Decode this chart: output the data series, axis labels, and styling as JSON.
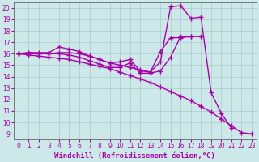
{
  "background_color": "#cce8e8",
  "grid_color": "#aacccc",
  "line_color": "#aa00aa",
  "marker": "+",
  "marker_size": 4,
  "line_width": 1.0,
  "xlabel": "Windchill (Refroidissement éolien,°C)",
  "xlabel_fontsize": 6.5,
  "tick_fontsize": 5.5,
  "xlim": [
    -0.5,
    23.5
  ],
  "ylim": [
    8.5,
    20.5
  ],
  "yticks": [
    9,
    10,
    11,
    12,
    13,
    14,
    15,
    16,
    17,
    18,
    19,
    20
  ],
  "xticks": [
    0,
    1,
    2,
    3,
    4,
    5,
    6,
    7,
    8,
    9,
    10,
    11,
    12,
    13,
    14,
    15,
    16,
    17,
    18,
    19,
    20,
    21,
    22,
    23
  ],
  "series": [
    {
      "x": [
        0,
        1,
        2,
        3,
        4,
        5,
        6,
        7,
        8,
        9,
        10,
        11,
        12,
        13,
        14,
        15,
        16,
        17,
        18,
        19,
        20,
        21
      ],
      "y": [
        16.0,
        16.1,
        16.1,
        16.1,
        16.6,
        16.4,
        16.2,
        15.8,
        15.5,
        15.2,
        15.3,
        15.5,
        14.5,
        14.4,
        15.3,
        20.1,
        20.2,
        19.1,
        19.2,
        12.6,
        10.8,
        9.5
      ]
    },
    {
      "x": [
        0,
        1,
        2,
        3,
        4,
        5,
        6,
        7,
        8,
        9,
        10,
        11,
        12,
        13,
        14,
        15,
        16,
        17,
        18
      ],
      "y": [
        16.0,
        16.0,
        16.0,
        16.0,
        16.1,
        16.1,
        16.0,
        15.8,
        15.5,
        15.2,
        15.0,
        14.8,
        14.6,
        14.4,
        16.2,
        17.4,
        17.4,
        17.5,
        17.5
      ]
    },
    {
      "x": [
        0,
        1,
        2,
        3,
        4,
        5,
        6,
        7,
        8,
        9,
        10,
        11,
        12,
        13,
        14,
        15,
        16,
        17
      ],
      "y": [
        16.0,
        16.1,
        16.0,
        16.0,
        16.0,
        15.9,
        15.7,
        15.4,
        15.1,
        14.8,
        14.8,
        15.2,
        14.3,
        14.3,
        14.5,
        15.7,
        17.5,
        17.5
      ]
    },
    {
      "x": [
        0,
        1,
        2,
        3,
        4,
        5,
        6,
        7,
        8,
        9,
        10,
        11,
        12,
        13,
        14,
        15,
        16,
        17,
        18,
        19,
        20,
        21,
        22,
        23
      ],
      "y": [
        16.0,
        15.9,
        15.8,
        15.7,
        15.6,
        15.5,
        15.3,
        15.1,
        14.9,
        14.7,
        14.4,
        14.1,
        13.8,
        13.5,
        13.1,
        12.7,
        12.3,
        11.9,
        11.4,
        10.9,
        10.3,
        9.7,
        9.1,
        9.0
      ]
    }
  ]
}
